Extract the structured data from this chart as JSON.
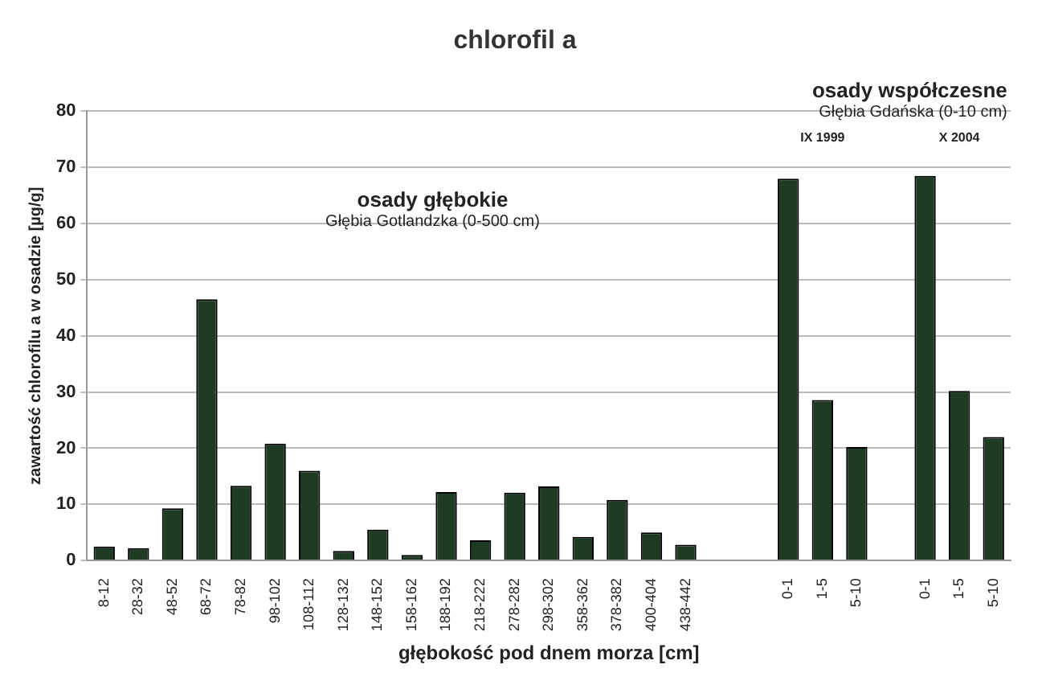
{
  "chart_data": {
    "type": "bar",
    "title": "chlorofil a",
    "xlabel": "głębokość pod dnem morza [cm]",
    "ylabel": "zawartość chlorofilu a w osadzie [µg/g]",
    "categories": [
      "8-12",
      "28-32",
      "48-52",
      "68-72",
      "78-82",
      "98-102",
      "108-112",
      "128-132",
      "148-152",
      "158-162",
      "188-192",
      "218-222",
      "278-282",
      "298-302",
      "358-362",
      "378-382",
      "400-404",
      "438-442",
      null,
      null,
      "0-1",
      "1-5",
      "5-10",
      null,
      "0-1",
      "1-5",
      "5-10"
    ],
    "values": [
      2.5,
      2.2,
      9.3,
      46.5,
      13.3,
      20.8,
      16,
      1.7,
      5.5,
      1,
      12.2,
      3.6,
      12.1,
      13.2,
      4.2,
      10.8,
      5,
      2.8,
      null,
      null,
      68,
      28.6,
      20.2,
      null,
      68.5,
      30.2,
      22
    ],
    "color": "#1e3b24",
    "ylim": [
      0,
      80
    ],
    "yticks": [
      0,
      10,
      20,
      30,
      40,
      50,
      60,
      70,
      80
    ],
    "grid": "y",
    "legend": false,
    "annotations": [
      "osady głębokie",
      "Głębia Gotlandzka (0-500 cm)",
      "osady współczesne",
      "Głębia Gdańska (0-10 cm)",
      "IX 1999",
      "X 2004"
    ]
  }
}
